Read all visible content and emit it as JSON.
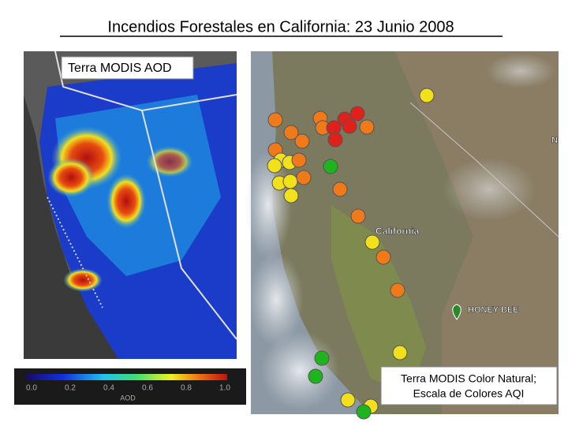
{
  "title": "Incendios Forestales en California: 23 Junio 2008",
  "left_panel": {
    "label": "Terra MODIS AOD"
  },
  "colorbar": {
    "ticks": [
      "0.0",
      "0.2",
      "0.4",
      "0.6",
      "0.8",
      "1.0"
    ],
    "axis_label": "AOD"
  },
  "right_panel": {
    "place_labels": [
      "California",
      "HONEY BEE",
      "N"
    ],
    "caption": [
      "Terra MODIS Color Natural;",
      "Escala de Colores AQI"
    ]
  }
}
